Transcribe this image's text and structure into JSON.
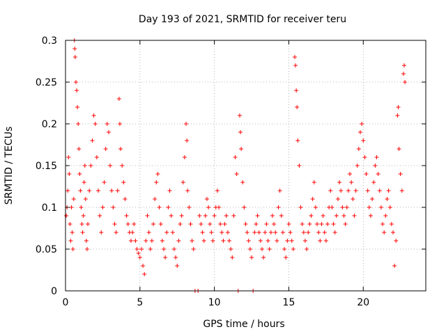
{
  "chart_data": {
    "type": "scatter",
    "title": "Day 193 of 2021, SRMTID for receiver teru",
    "xlabel": "GPS time / hours",
    "ylabel": "SRMTID / TECUs",
    "xlim": [
      0,
      24.2
    ],
    "ylim": [
      0,
      0.3
    ],
    "xticks": [
      0,
      5,
      10,
      15,
      20
    ],
    "xtick_labels": [
      "0",
      "5",
      "10",
      "15",
      "20"
    ],
    "yticks": [
      0,
      0.05,
      0.1,
      0.15,
      0.2,
      0.25,
      0.3
    ],
    "ytick_labels": [
      "0",
      "0.05",
      "0.1",
      "0.15",
      "0.2",
      "0.25",
      "0.3"
    ],
    "grid": true,
    "marker": "+",
    "color": "#ff0000",
    "series": [
      {
        "name": "SRMTID",
        "points": [
          [
            0.05,
            0.09
          ],
          [
            0.1,
            0.1
          ],
          [
            0.15,
            0.12
          ],
          [
            0.2,
            0.16
          ],
          [
            0.25,
            0.14
          ],
          [
            0.3,
            0.08
          ],
          [
            0.35,
            0.06
          ],
          [
            0.4,
            0.1
          ],
          [
            0.45,
            0.07
          ],
          [
            0.5,
            0.05
          ],
          [
            0.55,
            0.11
          ],
          [
            0.6,
            0.3
          ],
          [
            0.62,
            0.29
          ],
          [
            0.65,
            0.28
          ],
          [
            0.7,
            0.25
          ],
          [
            0.75,
            0.24
          ],
          [
            0.8,
            0.22
          ],
          [
            0.85,
            0.2
          ],
          [
            0.9,
            0.17
          ],
          [
            0.95,
            0.14
          ],
          [
            1.0,
            0.12
          ],
          [
            1.05,
            0.1
          ],
          [
            1.1,
            0.08
          ],
          [
            1.15,
            0.07
          ],
          [
            1.2,
            0.09
          ],
          [
            1.25,
            0.13
          ],
          [
            1.3,
            0.15
          ],
          [
            1.35,
            0.11
          ],
          [
            1.4,
            0.06
          ],
          [
            1.45,
            0.05
          ],
          [
            1.5,
            0.08
          ],
          [
            1.6,
            0.12
          ],
          [
            1.7,
            0.15
          ],
          [
            1.8,
            0.18
          ],
          [
            1.9,
            0.21
          ],
          [
            2.0,
            0.2
          ],
          [
            2.1,
            0.16
          ],
          [
            2.2,
            0.12
          ],
          [
            2.3,
            0.09
          ],
          [
            2.4,
            0.07
          ],
          [
            2.5,
            0.1
          ],
          [
            2.6,
            0.13
          ],
          [
            2.7,
            0.17
          ],
          [
            2.8,
            0.2
          ],
          [
            2.9,
            0.19
          ],
          [
            3.0,
            0.15
          ],
          [
            3.1,
            0.12
          ],
          [
            3.2,
            0.1
          ],
          [
            3.3,
            0.08
          ],
          [
            3.4,
            0.07
          ],
          [
            3.5,
            0.12
          ],
          [
            3.6,
            0.23
          ],
          [
            3.65,
            0.2
          ],
          [
            3.7,
            0.17
          ],
          [
            3.8,
            0.15
          ],
          [
            3.9,
            0.13
          ],
          [
            4.0,
            0.11
          ],
          [
            4.1,
            0.09
          ],
          [
            4.2,
            0.08
          ],
          [
            4.3,
            0.07
          ],
          [
            4.4,
            0.06
          ],
          [
            4.5,
            0.07
          ],
          [
            4.6,
            0.08
          ],
          [
            4.7,
            0.06
          ],
          [
            4.8,
            0.05
          ],
          [
            4.9,
            0.045
          ],
          [
            5.0,
            0.04
          ],
          [
            5.1,
            0.05
          ],
          [
            5.2,
            0.03
          ],
          [
            5.3,
            0.02
          ],
          [
            5.4,
            0.06
          ],
          [
            5.5,
            0.09
          ],
          [
            5.6,
            0.07
          ],
          [
            5.7,
            0.05
          ],
          [
            5.8,
            0.06
          ],
          [
            5.9,
            0.08
          ],
          [
            6.0,
            0.11
          ],
          [
            6.1,
            0.13
          ],
          [
            6.2,
            0.14
          ],
          [
            6.3,
            0.1
          ],
          [
            6.4,
            0.08
          ],
          [
            6.5,
            0.06
          ],
          [
            6.6,
            0.05
          ],
          [
            6.7,
            0.04
          ],
          [
            6.8,
            0.07
          ],
          [
            6.9,
            0.1
          ],
          [
            7.0,
            0.12
          ],
          [
            7.1,
            0.09
          ],
          [
            7.2,
            0.07
          ],
          [
            7.3,
            0.05
          ],
          [
            7.4,
            0.04
          ],
          [
            7.5,
            0.03
          ],
          [
            7.6,
            0.06
          ],
          [
            7.7,
            0.08
          ],
          [
            7.8,
            0.09
          ],
          [
            7.9,
            0.13
          ],
          [
            8.0,
            0.16
          ],
          [
            8.1,
            0.2
          ],
          [
            8.15,
            0.18
          ],
          [
            8.2,
            0.12
          ],
          [
            8.3,
            0.1
          ],
          [
            8.4,
            0.08
          ],
          [
            8.5,
            0.06
          ],
          [
            8.6,
            0.05
          ],
          [
            8.7,
            0.0
          ],
          [
            8.9,
            0.0
          ],
          [
            9.0,
            0.09
          ],
          [
            9.1,
            0.08
          ],
          [
            9.2,
            0.07
          ],
          [
            9.3,
            0.06
          ],
          [
            9.4,
            0.09
          ],
          [
            9.5,
            0.11
          ],
          [
            9.6,
            0.1
          ],
          [
            9.7,
            0.08
          ],
          [
            9.8,
            0.07
          ],
          [
            9.9,
            0.06
          ],
          [
            10.0,
            0.09
          ],
          [
            10.1,
            0.1
          ],
          [
            10.2,
            0.12
          ],
          [
            10.3,
            0.1
          ],
          [
            10.4,
            0.08
          ],
          [
            10.5,
            0.07
          ],
          [
            10.6,
            0.06
          ],
          [
            10.7,
            0.08
          ],
          [
            10.8,
            0.09
          ],
          [
            10.9,
            0.07
          ],
          [
            11.0,
            0.06
          ],
          [
            11.1,
            0.05
          ],
          [
            11.2,
            0.04
          ],
          [
            11.3,
            0.09
          ],
          [
            11.4,
            0.16
          ],
          [
            11.5,
            0.14
          ],
          [
            11.6,
            0.0
          ],
          [
            11.7,
            0.21
          ],
          [
            11.75,
            0.19
          ],
          [
            11.8,
            0.17
          ],
          [
            11.9,
            0.13
          ],
          [
            12.0,
            0.1
          ],
          [
            12.1,
            0.08
          ],
          [
            12.2,
            0.07
          ],
          [
            12.3,
            0.06
          ],
          [
            12.4,
            0.05
          ],
          [
            12.5,
            0.04
          ],
          [
            12.6,
            0.0
          ],
          [
            12.7,
            0.07
          ],
          [
            12.8,
            0.08
          ],
          [
            12.9,
            0.09
          ],
          [
            13.0,
            0.07
          ],
          [
            13.1,
            0.06
          ],
          [
            13.2,
            0.05
          ],
          [
            13.3,
            0.04
          ],
          [
            13.4,
            0.07
          ],
          [
            13.5,
            0.08
          ],
          [
            13.6,
            0.06
          ],
          [
            13.7,
            0.05
          ],
          [
            13.8,
            0.07
          ],
          [
            13.9,
            0.09
          ],
          [
            14.0,
            0.08
          ],
          [
            14.1,
            0.07
          ],
          [
            14.2,
            0.06
          ],
          [
            14.3,
            0.1
          ],
          [
            14.4,
            0.12
          ],
          [
            14.5,
            0.09
          ],
          [
            14.6,
            0.07
          ],
          [
            14.7,
            0.05
          ],
          [
            14.8,
            0.04
          ],
          [
            14.9,
            0.06
          ],
          [
            15.0,
            0.08
          ],
          [
            15.1,
            0.07
          ],
          [
            15.2,
            0.06
          ],
          [
            15.3,
            0.05
          ],
          [
            15.4,
            0.28
          ],
          [
            15.45,
            0.27
          ],
          [
            15.5,
            0.24
          ],
          [
            15.55,
            0.22
          ],
          [
            15.6,
            0.18
          ],
          [
            15.7,
            0.15
          ],
          [
            15.8,
            0.1
          ],
          [
            15.9,
            0.08
          ],
          [
            16.0,
            0.07
          ],
          [
            16.1,
            0.06
          ],
          [
            16.2,
            0.05
          ],
          [
            16.3,
            0.07
          ],
          [
            16.4,
            0.08
          ],
          [
            16.5,
            0.09
          ],
          [
            16.6,
            0.11
          ],
          [
            16.7,
            0.13
          ],
          [
            16.8,
            0.1
          ],
          [
            16.9,
            0.08
          ],
          [
            17.0,
            0.07
          ],
          [
            17.1,
            0.06
          ],
          [
            17.2,
            0.08
          ],
          [
            17.3,
            0.09
          ],
          [
            17.4,
            0.07
          ],
          [
            17.5,
            0.06
          ],
          [
            17.6,
            0.08
          ],
          [
            17.7,
            0.1
          ],
          [
            17.8,
            0.12
          ],
          [
            17.9,
            0.1
          ],
          [
            18.0,
            0.08
          ],
          [
            18.1,
            0.07
          ],
          [
            18.2,
            0.09
          ],
          [
            18.3,
            0.11
          ],
          [
            18.4,
            0.13
          ],
          [
            18.5,
            0.12
          ],
          [
            18.6,
            0.1
          ],
          [
            18.7,
            0.09
          ],
          [
            18.8,
            0.08
          ],
          [
            18.9,
            0.1
          ],
          [
            19.0,
            0.12
          ],
          [
            19.1,
            0.14
          ],
          [
            19.2,
            0.13
          ],
          [
            19.3,
            0.11
          ],
          [
            19.4,
            0.09
          ],
          [
            19.5,
            0.12
          ],
          [
            19.6,
            0.15
          ],
          [
            19.7,
            0.17
          ],
          [
            19.8,
            0.19
          ],
          [
            19.9,
            0.2
          ],
          [
            20.0,
            0.18
          ],
          [
            20.1,
            0.16
          ],
          [
            20.2,
            0.14
          ],
          [
            20.3,
            0.12
          ],
          [
            20.4,
            0.1
          ],
          [
            20.5,
            0.09
          ],
          [
            20.6,
            0.11
          ],
          [
            20.7,
            0.13
          ],
          [
            20.8,
            0.15
          ],
          [
            20.9,
            0.16
          ],
          [
            21.0,
            0.14
          ],
          [
            21.1,
            0.12
          ],
          [
            21.2,
            0.1
          ],
          [
            21.3,
            0.08
          ],
          [
            21.4,
            0.07
          ],
          [
            21.5,
            0.09
          ],
          [
            21.6,
            0.11
          ],
          [
            21.7,
            0.12
          ],
          [
            21.8,
            0.1
          ],
          [
            21.9,
            0.08
          ],
          [
            22.0,
            0.07
          ],
          [
            22.1,
            0.03
          ],
          [
            22.2,
            0.06
          ],
          [
            22.3,
            0.21
          ],
          [
            22.35,
            0.22
          ],
          [
            22.4,
            0.17
          ],
          [
            22.5,
            0.14
          ],
          [
            22.6,
            0.12
          ],
          [
            22.7,
            0.26
          ],
          [
            22.75,
            0.27
          ],
          [
            22.8,
            0.25
          ]
        ]
      }
    ]
  }
}
